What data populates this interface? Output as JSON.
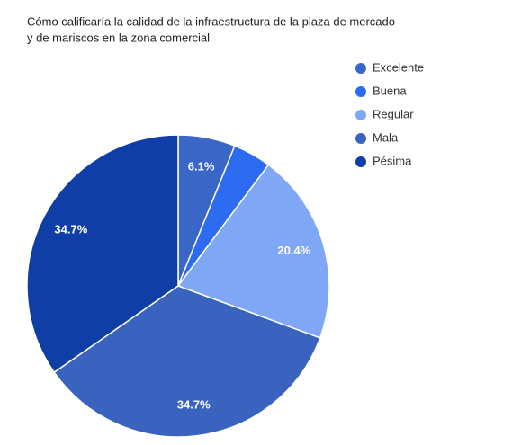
{
  "chart_data": {
    "type": "pie",
    "title": [
      "Cómo calificaría la calidad de la infraestructura  de la plaza de mercado",
      "y de mariscos en la zona comercial"
    ],
    "categories": [
      "Excelente",
      "Buena",
      "Regular",
      "Mala",
      "Pésima"
    ],
    "values": [
      6.1,
      4.1,
      20.4,
      34.7,
      34.7
    ],
    "value_labels": [
      "6.1%",
      null,
      "20.4%",
      "34.7%",
      "34.7%"
    ],
    "colors": [
      "#3a66c8",
      "#2d6cf0",
      "#80a7f6",
      "#3a63c0",
      "#0f3fa6"
    ],
    "legend": "right"
  }
}
